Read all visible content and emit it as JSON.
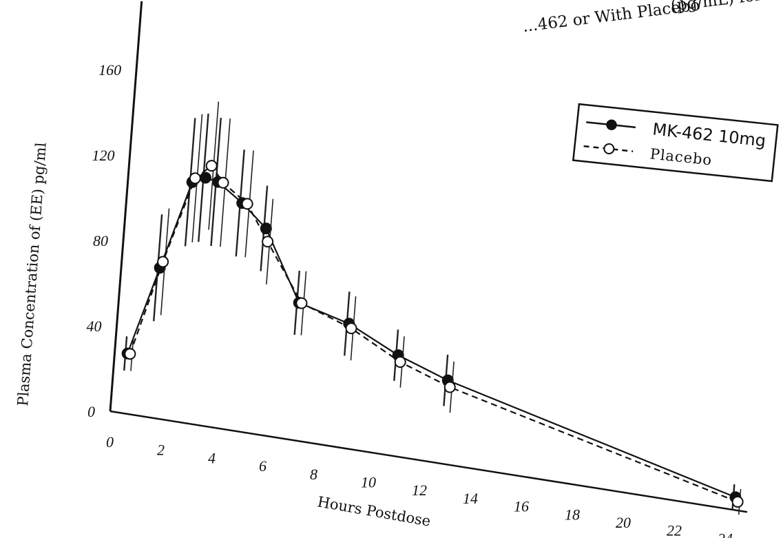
{
  "chart_data": {
    "type": "line",
    "title_fragment_line1": "...462 or With Placebo",
    "title_fragment_suffix": "(pg/mL) for",
    "xlabel": "Hours Postdose",
    "ylabel": "Plasma Concentration of (EE) pg/ml",
    "xlim": [
      -1,
      25
    ],
    "ylim": [
      0,
      180
    ],
    "x_ticks": [
      0,
      2,
      4,
      6,
      8,
      10,
      12,
      14,
      16,
      18,
      20,
      22,
      24
    ],
    "y_ticks": [
      0,
      40,
      80,
      120,
      160
    ],
    "x_tick_labels": [
      "0",
      "2",
      "4",
      "6",
      "8",
      "10",
      "12",
      "14",
      "16",
      "18",
      "20",
      "22",
      "24"
    ],
    "y_tick_labels": [
      "0",
      "40",
      "80",
      "120",
      "160"
    ],
    "legend_position": "top-right",
    "series": [
      {
        "name": "MK-462 10mg",
        "marker": "filled-circle",
        "line": "solid",
        "color": "#111111",
        "x": [
          0.5,
          1.5,
          2.5,
          3.0,
          3.5,
          4.5,
          5.5,
          7.0,
          9.0,
          11.0,
          13.0,
          24.5
        ],
        "y": [
          28,
          70,
          112,
          115,
          114,
          106,
          96,
          64,
          58,
          47,
          39,
          6
        ],
        "err": [
          8,
          25,
          30,
          30,
          30,
          25,
          20,
          15,
          15,
          12,
          12,
          6
        ]
      },
      {
        "name": "Placebo",
        "marker": "open-circle",
        "line": "dashed",
        "color": "#111111",
        "x": [
          0.6,
          1.6,
          2.6,
          3.2,
          3.7,
          4.7,
          5.6,
          7.1,
          9.1,
          11.1,
          13.1,
          24.6
        ],
        "y": [
          28,
          73,
          114,
          121,
          114,
          106,
          90,
          64,
          56,
          44,
          36,
          4
        ],
        "err": [
          8,
          25,
          30,
          30,
          30,
          25,
          20,
          15,
          15,
          12,
          12,
          6
        ]
      }
    ]
  }
}
